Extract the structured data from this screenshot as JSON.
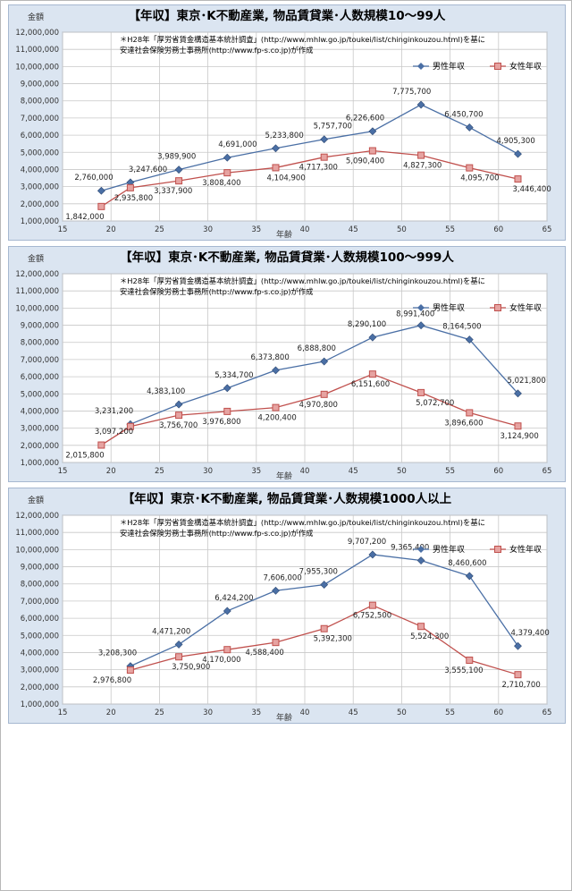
{
  "chart_data": [
    {
      "type": "line",
      "title": "【年収】東京･K不動産業, 物品賃貸業･人数規模10～99人",
      "note_lines": [
        "＊H28年「厚労省賃金構造基本統計調査」(http://www.mhlw.go.jp/toukei/list/chinginkouzou.html)を基に",
        "安達社会保険労務士事務所(http://www.fp-s.co.jp)が作成"
      ],
      "xlabel": "年齢",
      "ylabel": "金額",
      "xlim": [
        15,
        65
      ],
      "ylim": [
        1000000,
        12000000
      ],
      "x_ticks": [
        "15",
        "20",
        "25",
        "30",
        "35",
        "40",
        "45",
        "50",
        "55",
        "60",
        "65"
      ],
      "y_ticks": [
        "1,000,000",
        "2,000,000",
        "3,000,000",
        "4,000,000",
        "5,000,000",
        "6,000,000",
        "7,000,000",
        "8,000,000",
        "9,000,000",
        "10,000,000",
        "11,000,000",
        "12,000,000"
      ],
      "grid": true,
      "legend": "top-right",
      "series": [
        {
          "name": "男性年収",
          "color": "#4a6fa5",
          "marker": "diamond",
          "x": [
            19,
            22,
            27,
            32,
            37,
            42,
            47,
            52,
            57,
            62
          ],
          "y": [
            2760000,
            3247600,
            3989900,
            4691000,
            5233800,
            5757700,
            6226600,
            7775700,
            6450700,
            4905300
          ],
          "labels": [
            "2,760,000",
            "3,247,600",
            "3,989,900",
            "4,691,000",
            "5,233,800",
            "5,757,700",
            "6,226,600",
            "7,775,700",
            "6,450,700",
            "4,905,300"
          ]
        },
        {
          "name": "女性年収",
          "color": "#c0504d",
          "marker": "square",
          "x": [
            19,
            22,
            27,
            32,
            37,
            42,
            47,
            52,
            57,
            62
          ],
          "y": [
            1842000,
            2935800,
            3337900,
            3808400,
            4104900,
            4717300,
            5090400,
            4827300,
            4095700,
            3446400
          ],
          "labels": [
            "1,842,000",
            "2,935,800",
            "3,337,900",
            "3,808,400",
            "4,104,900",
            "4,717,300",
            "5,090,400",
            "4,827,300",
            "4,095,700",
            "3,446,400"
          ]
        }
      ]
    },
    {
      "type": "line",
      "title": "【年収】東京･K不動産業, 物品賃貸業･人数規模100～999人",
      "note_lines": [
        "＊H28年「厚労省賃金構造基本統計調査」(http://www.mhlw.go.jp/toukei/list/chinginkouzou.html)を基に",
        "安達社会保険労務士事務所(http://www.fp-s.co.jp)が作成"
      ],
      "xlabel": "年齢",
      "ylabel": "金額",
      "xlim": [
        15,
        65
      ],
      "ylim": [
        1000000,
        12000000
      ],
      "x_ticks": [
        "15",
        "20",
        "25",
        "30",
        "35",
        "40",
        "45",
        "50",
        "55",
        "60",
        "65"
      ],
      "y_ticks": [
        "1,000,000",
        "2,000,000",
        "3,000,000",
        "4,000,000",
        "5,000,000",
        "6,000,000",
        "7,000,000",
        "8,000,000",
        "9,000,000",
        "10,000,000",
        "11,000,000",
        "12,000,000"
      ],
      "grid": true,
      "legend": "top-right",
      "series": [
        {
          "name": "男性年収",
          "color": "#4a6fa5",
          "marker": "diamond",
          "x": [
            22,
            27,
            32,
            37,
            42,
            47,
            52,
            57,
            62
          ],
          "y": [
            3231200,
            4383100,
            5334700,
            6373800,
            6888800,
            8290100,
            8991400,
            8164500,
            5021800
          ],
          "labels": [
            "3,231,200",
            "4,383,100",
            "5,334,700",
            "6,373,800",
            "6,888,800",
            "8,290,100",
            "8,991,400",
            "8,164,500",
            "5,021,800"
          ]
        },
        {
          "name": "女性年収",
          "color": "#c0504d",
          "marker": "square",
          "x": [
            19,
            22,
            27,
            32,
            37,
            42,
            47,
            52,
            57,
            62
          ],
          "y": [
            2015800,
            3097200,
            3756700,
            3976800,
            4200400,
            4970800,
            6151600,
            5072700,
            3896600,
            3124900
          ],
          "labels": [
            "2,015,800",
            "3,097,200",
            "3,756,700",
            "3,976,800",
            "4,200,400",
            "4,970,800",
            "6,151,600",
            "5,072,700",
            "3,896,600",
            "3,124,900"
          ]
        }
      ]
    },
    {
      "type": "line",
      "title": "【年収】東京･K不動産業, 物品賃貸業･人数規模1000人以上",
      "note_lines": [
        "＊H28年「厚労省賃金構造基本統計調査」(http://www.mhlw.go.jp/toukei/list/chinginkouzou.html)を基に",
        "安達社会保険労務士事務所(http://www.fp-s.co.jp)が作成"
      ],
      "xlabel": "年齢",
      "ylabel": "金額",
      "xlim": [
        15,
        65
      ],
      "ylim": [
        1000000,
        12000000
      ],
      "x_ticks": [
        "15",
        "20",
        "25",
        "30",
        "35",
        "40",
        "45",
        "50",
        "55",
        "60",
        "65"
      ],
      "y_ticks": [
        "1,000,000",
        "2,000,000",
        "3,000,000",
        "4,000,000",
        "5,000,000",
        "6,000,000",
        "7,000,000",
        "8,000,000",
        "9,000,000",
        "10,000,000",
        "11,000,000",
        "12,000,000"
      ],
      "grid": true,
      "legend": "top-right",
      "series": [
        {
          "name": "男性年収",
          "color": "#4a6fa5",
          "marker": "diamond",
          "x": [
            22,
            27,
            32,
            37,
            42,
            47,
            52,
            57,
            62
          ],
          "y": [
            3208300,
            4471200,
            6424200,
            7606000,
            7955300,
            9707200,
            9365400,
            8460600,
            4379400
          ],
          "labels": [
            "3,208,300",
            "4,471,200",
            "6,424,200",
            "7,606,000",
            "7,955,300",
            "9,707,200",
            "9,365,400",
            "8,460,600",
            "4,379,400"
          ]
        },
        {
          "name": "女性年収",
          "color": "#c0504d",
          "marker": "square",
          "x": [
            22,
            27,
            32,
            37,
            42,
            47,
            52,
            57,
            62
          ],
          "y": [
            2976800,
            3750900,
            4170000,
            4588400,
            5392300,
            6752500,
            5524300,
            3555100,
            2710700
          ],
          "labels": [
            "2,976,800",
            "3,750,900",
            "4,170,000",
            "4,588,400",
            "5,392,300",
            "6,752,500",
            "5,524,300",
            "3,555,100",
            "2,710,700"
          ]
        }
      ]
    }
  ]
}
